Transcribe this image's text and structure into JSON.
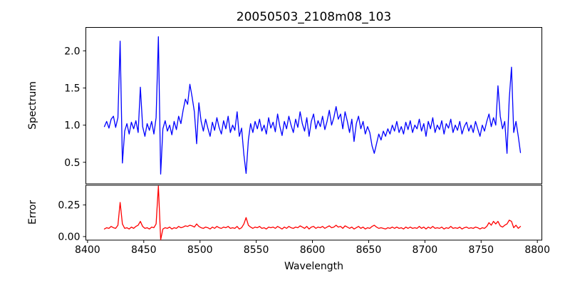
{
  "figure": {
    "background": "#ffffff",
    "axes_color": "#000000"
  },
  "chart_data": [
    {
      "type": "line",
      "title": "20050503_2108m08_103",
      "ylabel": "Spectrum",
      "xlim": [
        8398.5,
        8804
      ],
      "ylim": [
        0.21,
        2.315
      ],
      "grid": false,
      "yticks": {
        "values": [
          0.5,
          1.0,
          1.5,
          2.0
        ],
        "labels": [
          "0.5",
          "1.0",
          "1.5",
          "2.0"
        ]
      },
      "series": [
        {
          "name": "spectrum",
          "color": "#0000ff",
          "x_start": 8415,
          "x_step": 2,
          "values": [
            0.98,
            1.05,
            0.96,
            1.08,
            1.12,
            0.97,
            1.1,
            2.13,
            0.49,
            0.92,
            1.02,
            0.88,
            1.04,
            0.95,
            1.06,
            0.9,
            1.51,
            0.98,
            0.85,
            1.02,
            0.93,
            1.05,
            0.88,
            1.1,
            2.19,
            0.34,
            0.95,
            1.06,
            0.92,
            1.0,
            0.87,
            1.05,
            0.94,
            1.12,
            1.02,
            1.2,
            1.35,
            1.28,
            1.55,
            1.38,
            1.18,
            0.75,
            1.3,
            1.05,
            0.92,
            1.08,
            0.96,
            0.85,
            1.04,
            0.93,
            1.1,
            0.97,
            0.88,
            1.06,
            0.95,
            1.12,
            0.9,
            1.0,
            0.93,
            1.18,
            0.85,
            0.96,
            0.6,
            0.35,
            0.8,
            1.02,
            0.9,
            1.05,
            0.95,
            1.08,
            0.92,
            1.0,
            0.88,
            1.1,
            0.96,
            1.04,
            0.91,
            1.15,
            0.98,
            0.86,
            1.05,
            0.95,
            1.12,
            1.0,
            0.9,
            1.08,
            0.97,
            1.18,
            1.02,
            0.92,
            1.1,
            0.85,
            1.05,
            1.15,
            0.95,
            1.06,
            0.98,
            1.12,
            0.94,
            1.05,
            1.2,
            1.0,
            1.1,
            1.25,
            1.08,
            1.15,
            0.95,
            1.18,
            1.05,
            0.9,
            1.08,
            0.78,
            1.02,
            1.12,
            0.95,
            1.05,
            0.88,
            0.98,
            0.9,
            0.72,
            0.62,
            0.75,
            0.88,
            0.8,
            0.92,
            0.85,
            0.95,
            0.88,
            1.0,
            0.92,
            1.05,
            0.9,
            0.98,
            0.88,
            1.04,
            0.94,
            1.06,
            0.9,
            1.0,
            0.95,
            1.08,
            0.92,
            1.02,
            0.85,
            1.05,
            0.95,
            1.1,
            0.9,
            1.0,
            0.94,
            1.06,
            0.88,
            1.02,
            0.96,
            1.08,
            0.9,
            1.0,
            0.93,
            1.05,
            0.88,
            0.98,
            1.04,
            0.92,
            1.0,
            0.9,
            1.05,
            0.95,
            0.85,
            1.0,
            0.92,
            1.05,
            1.15,
            0.98,
            1.1,
            1.0,
            1.53,
            1.12,
            0.95,
            1.05,
            0.62,
            1.35,
            1.78,
            0.9,
            1.05,
            0.85,
            0.63
          ]
        }
      ]
    },
    {
      "type": "line",
      "xlabel": "Wavelength",
      "ylabel": "Error",
      "xlim": [
        8398.5,
        8804
      ],
      "ylim": [
        -0.028,
        0.406
      ],
      "grid": false,
      "xticks": {
        "values": [
          8400,
          8450,
          8500,
          8550,
          8600,
          8650,
          8700,
          8750,
          8800
        ],
        "labels": [
          "8400",
          "8450",
          "8500",
          "8550",
          "8600",
          "8650",
          "8700",
          "8750",
          "8800"
        ]
      },
      "yticks": {
        "values": [
          0.0,
          0.25
        ],
        "labels": [
          "0.00",
          "0.25"
        ]
      },
      "series": [
        {
          "name": "error",
          "color": "#ff0000",
          "x_start": 8415,
          "x_step": 2,
          "values": [
            0.06,
            0.07,
            0.065,
            0.08,
            0.07,
            0.065,
            0.09,
            0.27,
            0.1,
            0.065,
            0.07,
            0.06,
            0.075,
            0.065,
            0.08,
            0.09,
            0.12,
            0.08,
            0.065,
            0.07,
            0.06,
            0.075,
            0.07,
            0.1,
            0.4,
            -0.025,
            0.06,
            0.07,
            0.065,
            0.075,
            0.06,
            0.07,
            0.065,
            0.08,
            0.07,
            0.075,
            0.085,
            0.08,
            0.09,
            0.085,
            0.075,
            0.1,
            0.08,
            0.07,
            0.065,
            0.075,
            0.07,
            0.06,
            0.075,
            0.065,
            0.08,
            0.07,
            0.065,
            0.075,
            0.07,
            0.08,
            0.065,
            0.07,
            0.065,
            0.08,
            0.06,
            0.07,
            0.1,
            0.15,
            0.09,
            0.075,
            0.065,
            0.075,
            0.07,
            0.08,
            0.065,
            0.07,
            0.06,
            0.075,
            0.07,
            0.075,
            0.065,
            0.08,
            0.07,
            0.06,
            0.075,
            0.065,
            0.08,
            0.07,
            0.065,
            0.075,
            0.07,
            0.085,
            0.075,
            0.065,
            0.08,
            0.06,
            0.075,
            0.08,
            0.065,
            0.075,
            0.07,
            0.08,
            0.065,
            0.075,
            0.085,
            0.07,
            0.075,
            0.09,
            0.075,
            0.08,
            0.065,
            0.085,
            0.075,
            0.065,
            0.075,
            0.06,
            0.07,
            0.08,
            0.065,
            0.075,
            0.06,
            0.07,
            0.065,
            0.08,
            0.09,
            0.075,
            0.065,
            0.07,
            0.065,
            0.06,
            0.07,
            0.065,
            0.075,
            0.065,
            0.075,
            0.065,
            0.07,
            0.06,
            0.075,
            0.065,
            0.075,
            0.065,
            0.07,
            0.065,
            0.08,
            0.065,
            0.075,
            0.06,
            0.075,
            0.065,
            0.08,
            0.065,
            0.07,
            0.065,
            0.075,
            0.06,
            0.07,
            0.065,
            0.08,
            0.065,
            0.07,
            0.065,
            0.075,
            0.06,
            0.07,
            0.075,
            0.065,
            0.07,
            0.065,
            0.075,
            0.07,
            0.06,
            0.07,
            0.065,
            0.08,
            0.11,
            0.09,
            0.12,
            0.1,
            0.12,
            0.085,
            0.075,
            0.09,
            0.1,
            0.13,
            0.12,
            0.07,
            0.09,
            0.065,
            0.08
          ]
        }
      ]
    }
  ]
}
